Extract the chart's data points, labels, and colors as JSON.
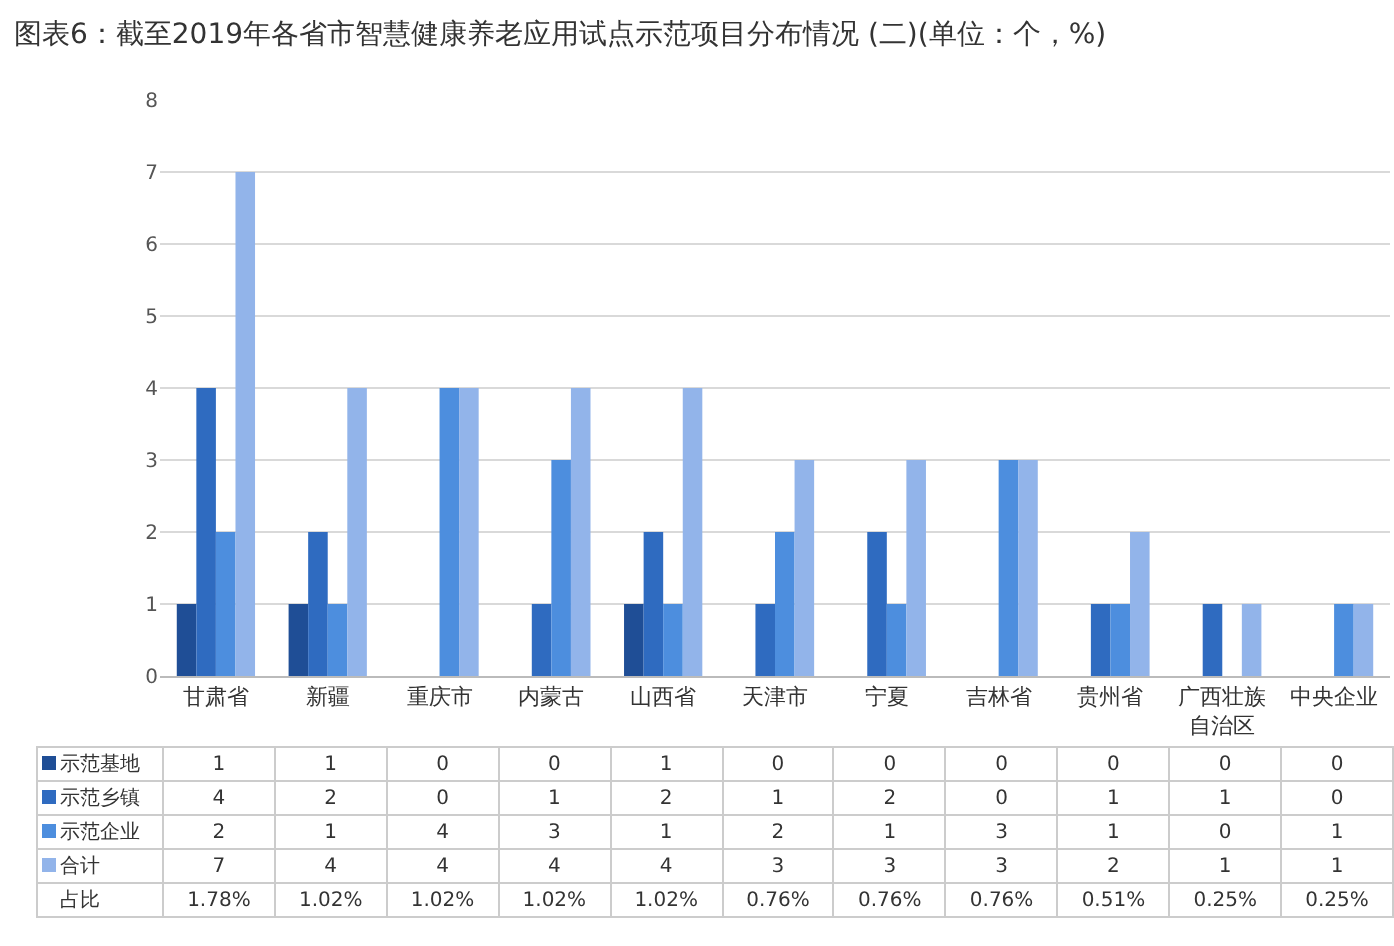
{
  "chart_data": {
    "type": "bar",
    "title": "图表6：截至2019年各省市智慧健康养老应用试点示范项目分布情况 (二)(单位：个，%)",
    "categories": [
      "甘肃省",
      "新疆",
      "重庆市",
      "内蒙古",
      "山西省",
      "天津市",
      "宁夏",
      "吉林省",
      "贵州省",
      "广西壮族自治区",
      "中央企业"
    ],
    "series": [
      {
        "name": "示范基地",
        "color": "#1f4e96",
        "values": [
          1,
          1,
          0,
          0,
          1,
          0,
          0,
          0,
          0,
          0,
          0
        ]
      },
      {
        "name": "示范乡镇",
        "color": "#2f6bc0",
        "values": [
          4,
          2,
          0,
          1,
          2,
          1,
          2,
          0,
          1,
          1,
          0
        ]
      },
      {
        "name": "示范企业",
        "color": "#4d8ede",
        "values": [
          2,
          1,
          4,
          3,
          1,
          2,
          1,
          3,
          1,
          0,
          1
        ]
      },
      {
        "name": "合计",
        "color": "#92b4ea",
        "values": [
          7,
          4,
          4,
          4,
          4,
          3,
          3,
          3,
          2,
          1,
          1
        ]
      }
    ],
    "annotations": [
      "占比",
      "1.78%",
      "1.02%",
      "1.02%",
      "1.02%",
      "1.02%",
      "0.76%",
      "0.76%",
      "0.76%",
      "0.51%",
      "0.25%",
      "0.25%"
    ],
    "ylim": [
      0,
      8
    ],
    "yticks": [
      0,
      1,
      2,
      3,
      4,
      5,
      6,
      7,
      8
    ],
    "grid": "y",
    "legend": "bottom",
    "data_labels": true
  }
}
